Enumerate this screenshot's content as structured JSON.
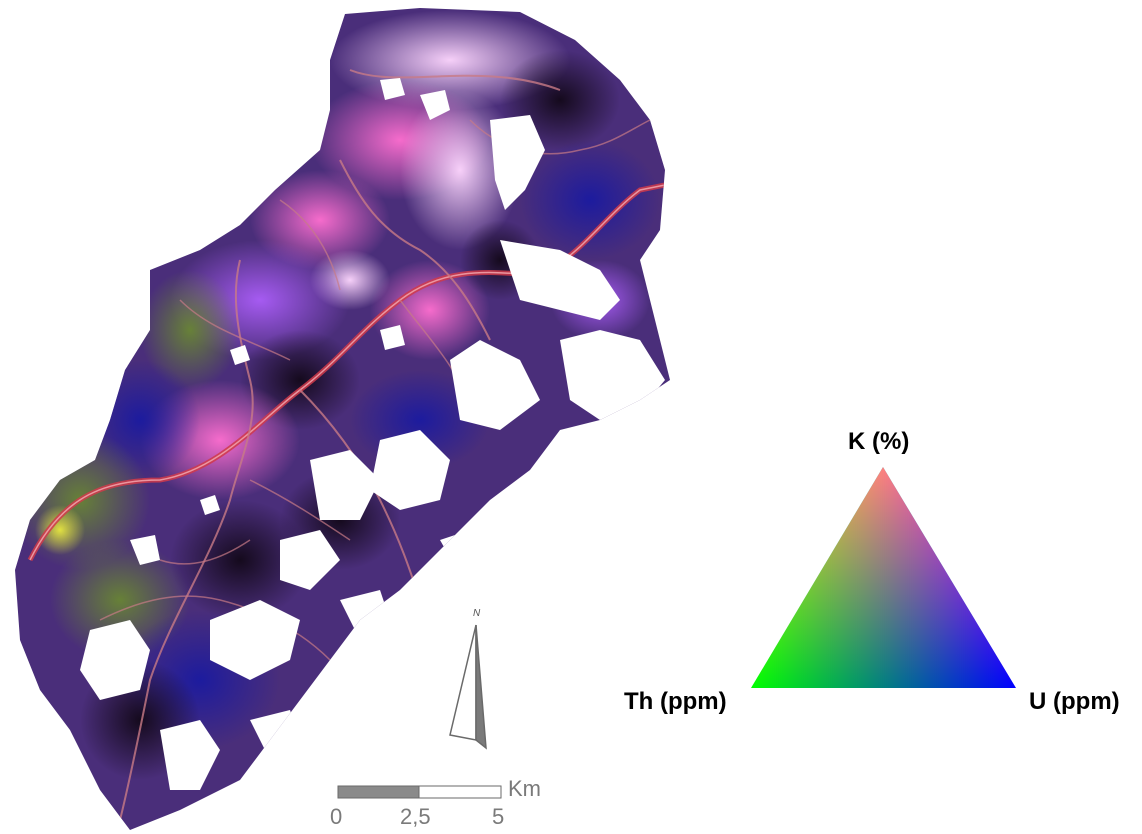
{
  "ternary_legend": {
    "top_label": "K (%)",
    "left_label": "Th (ppm)",
    "right_label": "U (ppm)",
    "colors": {
      "K": "#ff0000",
      "Th": "#00ff00",
      "U": "#0000ff"
    }
  },
  "scale_bar": {
    "tick_0": "0",
    "tick_mid": "2,5",
    "tick_end": "5",
    "unit": "Km"
  },
  "north_arrow": {
    "label": "N"
  },
  "colors": {
    "road_major": "#d03a4a",
    "road_minor": "#c87a86",
    "water": "#ffffff"
  }
}
